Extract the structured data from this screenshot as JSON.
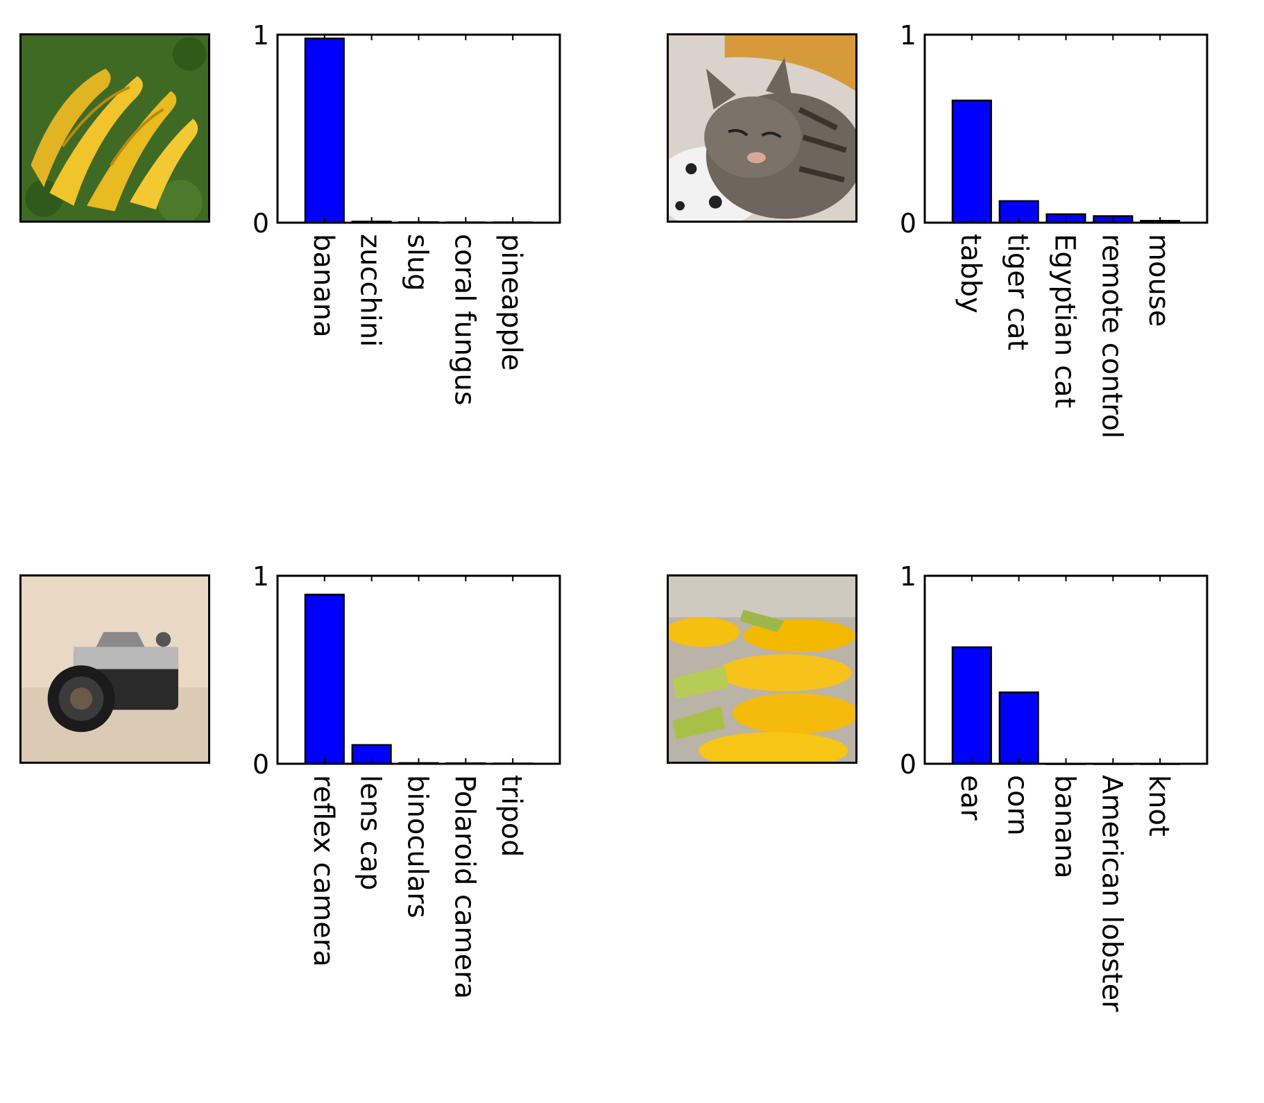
{
  "colors": {
    "bar": "#0000ff",
    "axis": "#000000",
    "background": "#ffffff"
  },
  "chart_data": [
    {
      "type": "bar",
      "image": "bananas-photo",
      "categories": [
        "banana",
        "zucchini",
        "slug",
        "coral fungus",
        "pineapple"
      ],
      "values": [
        0.98,
        0.006,
        0.003,
        0.002,
        0.002
      ],
      "ylim": [
        0,
        1
      ],
      "yticks": [
        "0",
        "1"
      ],
      "grid": false
    },
    {
      "type": "bar",
      "image": "tabby-cat-photo",
      "categories": [
        "tabby",
        "tiger cat",
        "Egyptian cat",
        "remote control",
        "mouse"
      ],
      "values": [
        0.65,
        0.115,
        0.045,
        0.035,
        0.01
      ],
      "ylim": [
        0,
        1
      ],
      "yticks": [
        "0",
        "1"
      ],
      "grid": false
    },
    {
      "type": "bar",
      "image": "nikon-camera-photo",
      "categories": [
        "reflex camera",
        "lens cap",
        "binoculars",
        "Polaroid camera",
        "tripod"
      ],
      "values": [
        0.9,
        0.1,
        0.004,
        0.003,
        0.002
      ],
      "ylim": [
        0,
        1
      ],
      "yticks": [
        "0",
        "1"
      ],
      "grid": false
    },
    {
      "type": "bar",
      "image": "corn-cobs-photo",
      "categories": [
        "ear",
        "corn",
        "banana",
        "American lobster",
        "knot"
      ],
      "values": [
        0.62,
        0.38,
        0.0,
        0.0,
        0.0
      ],
      "ylim": [
        0,
        1
      ],
      "yticks": [
        "0",
        "1"
      ],
      "grid": false
    }
  ]
}
